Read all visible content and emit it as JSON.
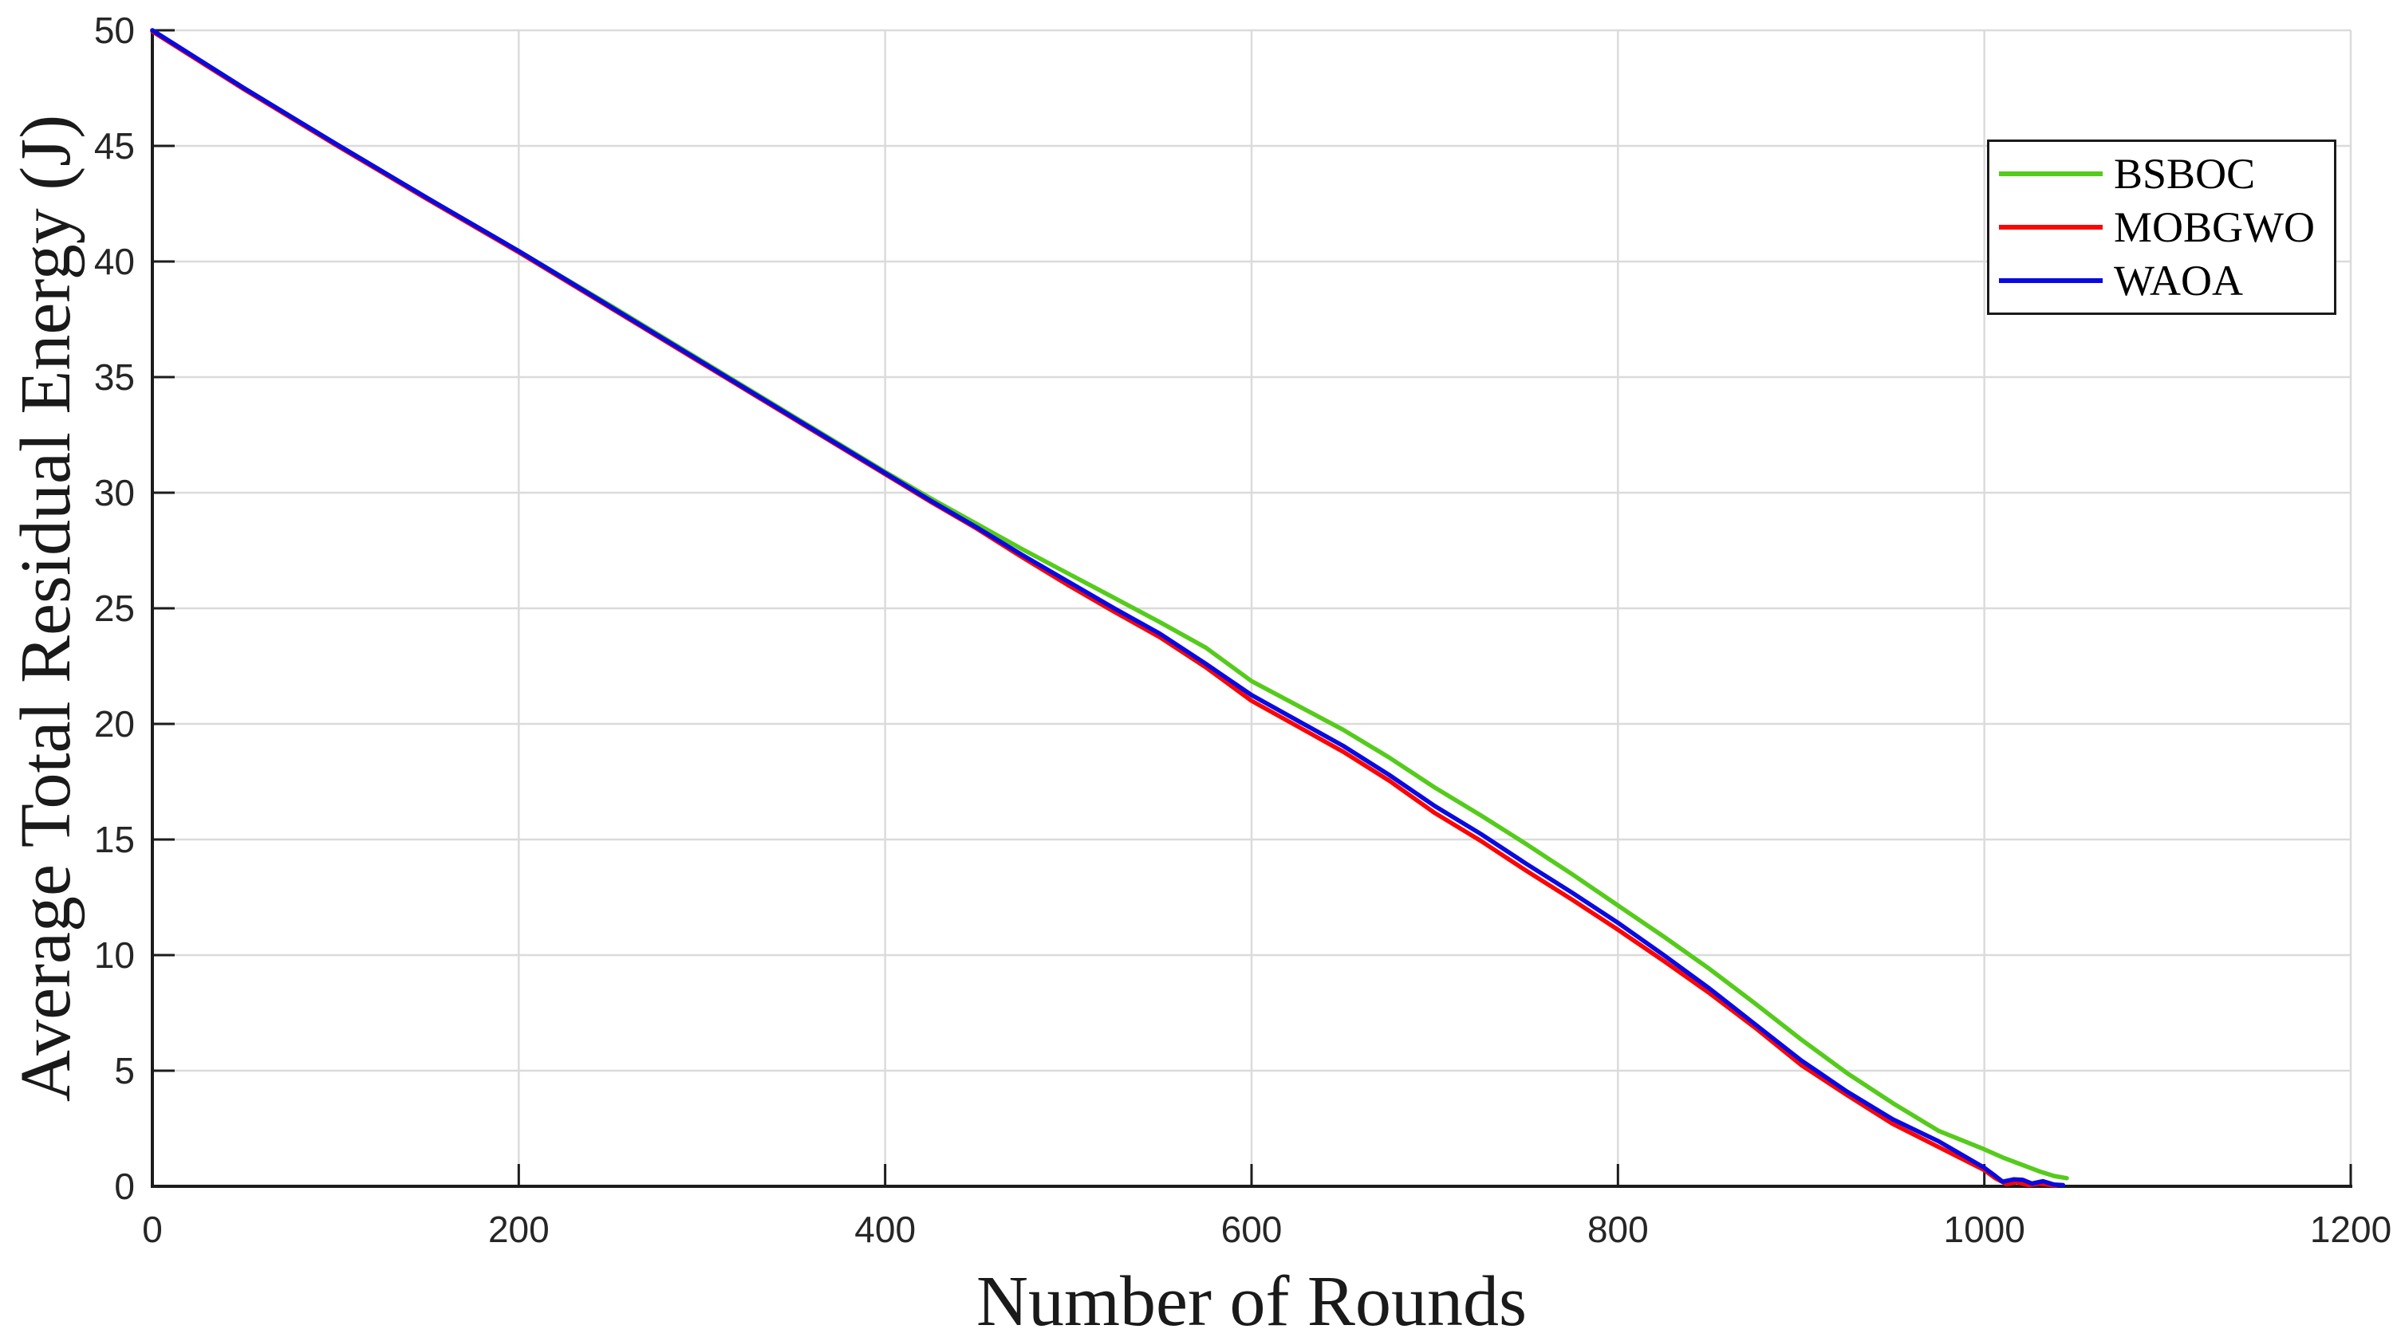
{
  "chart_data": {
    "type": "line",
    "title": "",
    "xlabel": "Number of Rounds",
    "ylabel": "Average Total Residual Energy (J)",
    "xlim": [
      0,
      1200
    ],
    "ylim": [
      0,
      50
    ],
    "x_ticks": [
      0,
      200,
      400,
      600,
      800,
      1000,
      1200
    ],
    "y_ticks": [
      0,
      5,
      10,
      15,
      20,
      25,
      30,
      35,
      40,
      45,
      50
    ],
    "grid": true,
    "legend_position": "northeast",
    "colors": {
      "grid": "#dbdbdb",
      "axis": "#1c1c1c",
      "tick_label": "#262626",
      "legend_border": "#1a1a1a"
    },
    "series": [
      {
        "name": "BSBOC",
        "color": "#55cb1c",
        "points": [
          [
            0,
            50
          ],
          [
            50,
            47.5
          ],
          [
            100,
            45.1
          ],
          [
            150,
            42.75
          ],
          [
            200,
            40.45
          ],
          [
            250,
            38.1
          ],
          [
            300,
            35.7
          ],
          [
            350,
            33.3
          ],
          [
            400,
            30.9
          ],
          [
            425,
            29.75
          ],
          [
            450,
            28.65
          ],
          [
            475,
            27.55
          ],
          [
            500,
            26.5
          ],
          [
            525,
            25.45
          ],
          [
            550,
            24.4
          ],
          [
            575,
            23.3
          ],
          [
            600,
            21.85
          ],
          [
            625,
            20.8
          ],
          [
            650,
            19.75
          ],
          [
            675,
            18.55
          ],
          [
            700,
            17.25
          ],
          [
            725,
            16.05
          ],
          [
            750,
            14.8
          ],
          [
            775,
            13.5
          ],
          [
            800,
            12.15
          ],
          [
            825,
            10.8
          ],
          [
            850,
            9.4
          ],
          [
            875,
            7.9
          ],
          [
            900,
            6.35
          ],
          [
            925,
            4.9
          ],
          [
            950,
            3.6
          ],
          [
            975,
            2.4
          ],
          [
            1000,
            1.6
          ],
          [
            1010,
            1.25
          ],
          [
            1020,
            0.95
          ],
          [
            1030,
            0.65
          ],
          [
            1038,
            0.45
          ],
          [
            1045,
            0.35
          ]
        ]
      },
      {
        "name": "MOBGWO",
        "color": "#fb0505",
        "points": [
          [
            0,
            49.95
          ],
          [
            50,
            47.45
          ],
          [
            100,
            45.05
          ],
          [
            150,
            42.7
          ],
          [
            200,
            40.4
          ],
          [
            250,
            38.0
          ],
          [
            300,
            35.6
          ],
          [
            350,
            33.2
          ],
          [
            400,
            30.8
          ],
          [
            425,
            29.6
          ],
          [
            450,
            28.45
          ],
          [
            475,
            27.2
          ],
          [
            500,
            26.0
          ],
          [
            525,
            24.85
          ],
          [
            550,
            23.75
          ],
          [
            575,
            22.45
          ],
          [
            600,
            21.0
          ],
          [
            625,
            19.9
          ],
          [
            650,
            18.8
          ],
          [
            675,
            17.55
          ],
          [
            700,
            16.15
          ],
          [
            725,
            14.95
          ],
          [
            750,
            13.65
          ],
          [
            775,
            12.4
          ],
          [
            800,
            11.1
          ],
          [
            825,
            9.75
          ],
          [
            850,
            8.35
          ],
          [
            875,
            6.85
          ],
          [
            900,
            5.25
          ],
          [
            925,
            3.95
          ],
          [
            950,
            2.7
          ],
          [
            975,
            1.7
          ],
          [
            1000,
            0.7
          ],
          [
            1006,
            0.35
          ],
          [
            1012,
            0.1
          ],
          [
            1018,
            0.18
          ],
          [
            1024,
            0.05
          ],
          [
            1030,
            0.12
          ],
          [
            1039,
            0.03
          ]
        ]
      },
      {
        "name": "WAOA",
        "color": "#0a0ae0",
        "points": [
          [
            0,
            50
          ],
          [
            50,
            47.5
          ],
          [
            100,
            45.1
          ],
          [
            150,
            42.75
          ],
          [
            200,
            40.45
          ],
          [
            250,
            38.05
          ],
          [
            300,
            35.65
          ],
          [
            350,
            33.25
          ],
          [
            400,
            30.85
          ],
          [
            425,
            29.65
          ],
          [
            450,
            28.5
          ],
          [
            475,
            27.3
          ],
          [
            500,
            26.15
          ],
          [
            525,
            25.0
          ],
          [
            550,
            23.9
          ],
          [
            575,
            22.6
          ],
          [
            600,
            21.25
          ],
          [
            625,
            20.15
          ],
          [
            650,
            19.05
          ],
          [
            675,
            17.8
          ],
          [
            700,
            16.45
          ],
          [
            725,
            15.25
          ],
          [
            750,
            13.95
          ],
          [
            775,
            12.7
          ],
          [
            800,
            11.4
          ],
          [
            825,
            10.0
          ],
          [
            850,
            8.55
          ],
          [
            875,
            7.0
          ],
          [
            900,
            5.45
          ],
          [
            925,
            4.1
          ],
          [
            950,
            2.9
          ],
          [
            975,
            1.95
          ],
          [
            1000,
            0.8
          ],
          [
            1006,
            0.45
          ],
          [
            1010,
            0.2
          ],
          [
            1016,
            0.3
          ],
          [
            1021,
            0.28
          ],
          [
            1026,
            0.12
          ],
          [
            1032,
            0.22
          ],
          [
            1038,
            0.08
          ],
          [
            1043,
            0.05
          ]
        ]
      }
    ]
  }
}
